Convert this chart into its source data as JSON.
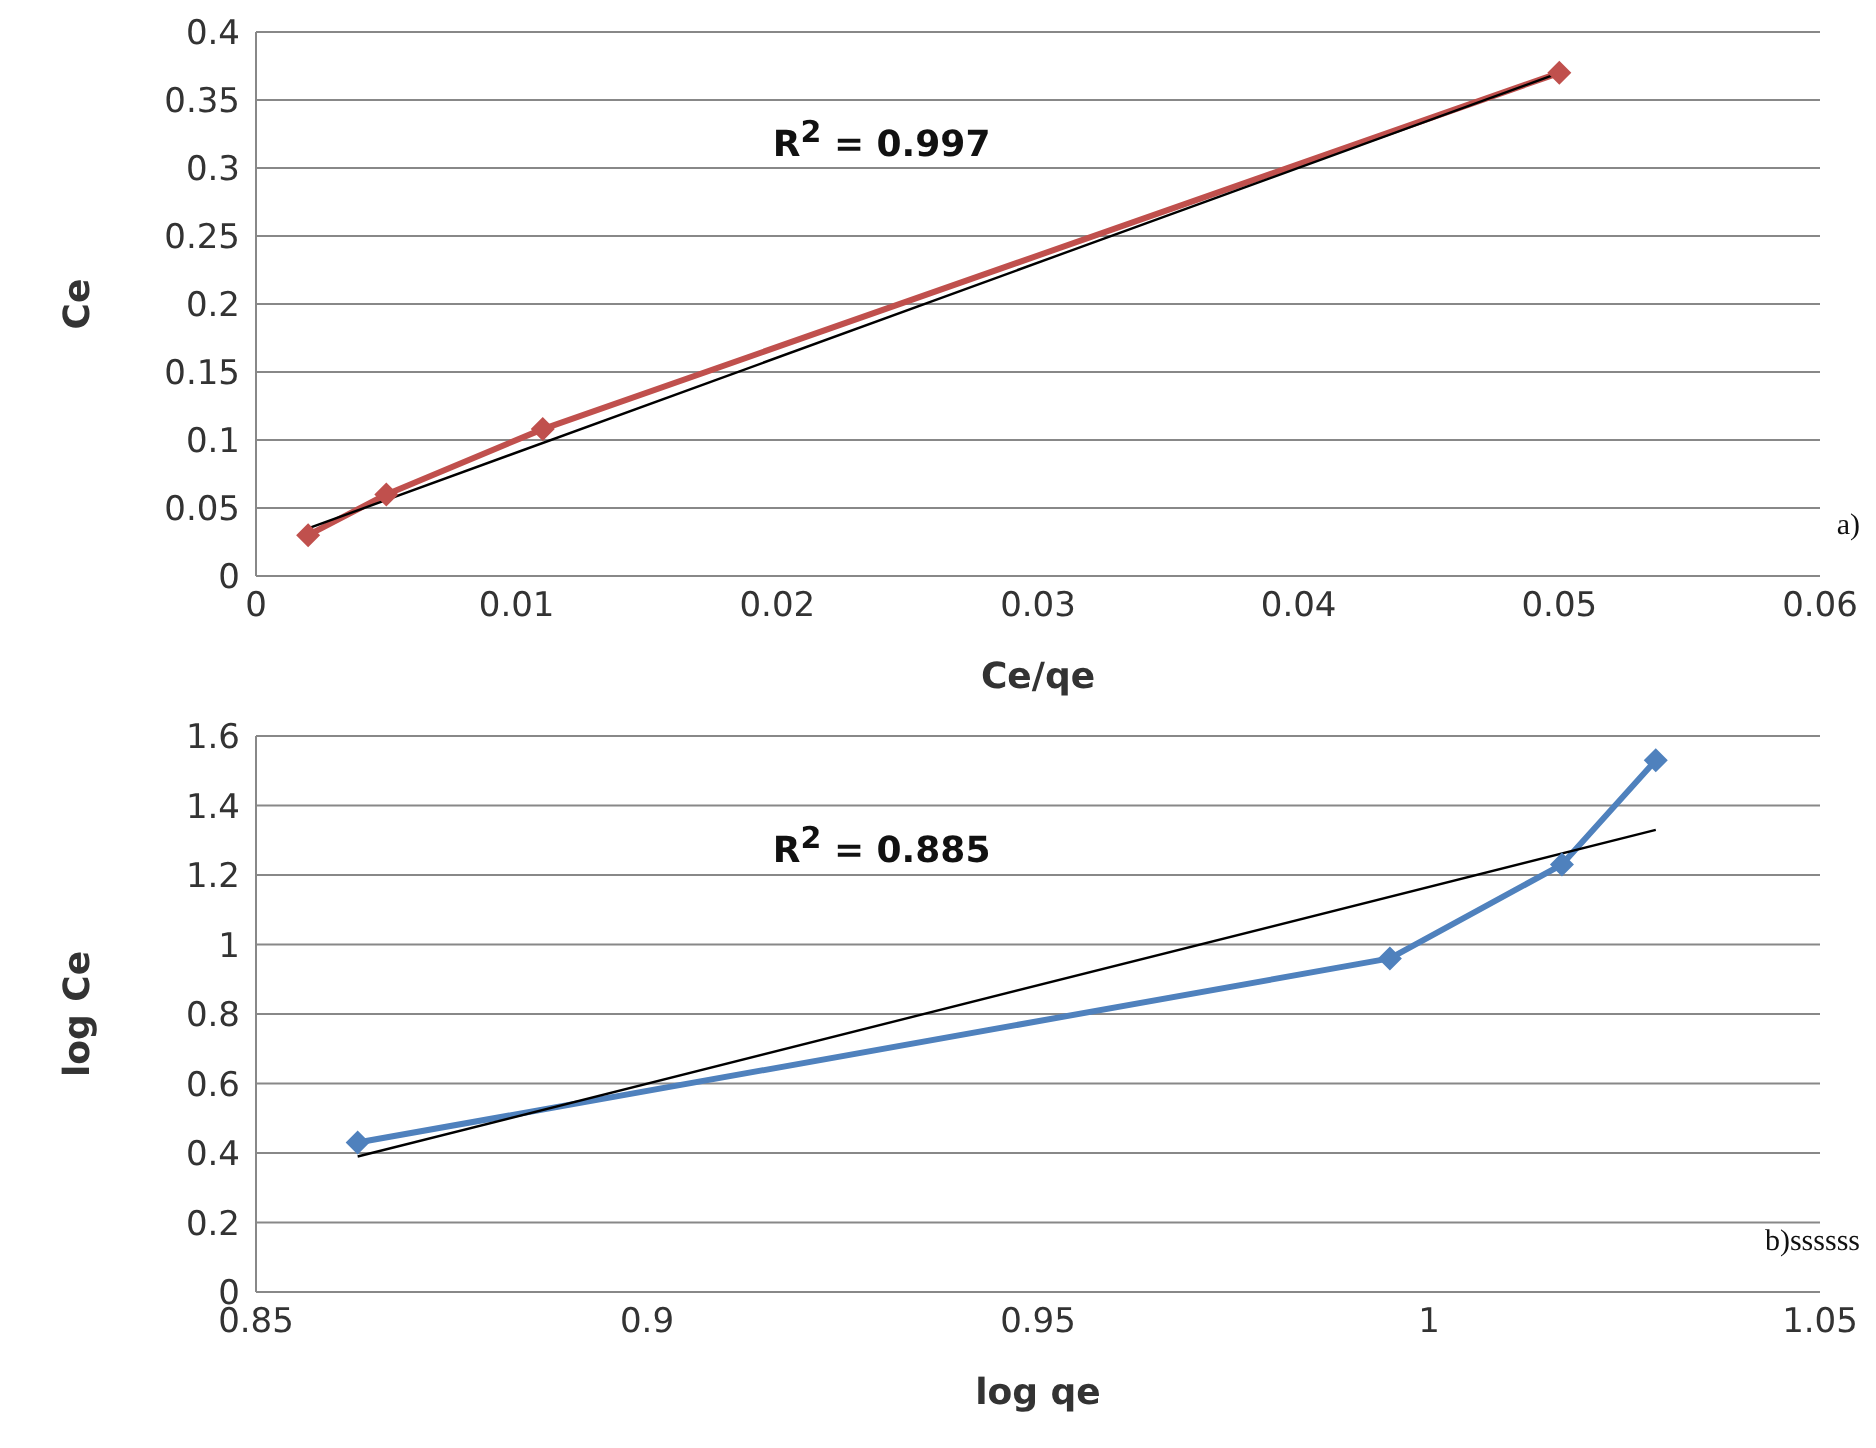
{
  "chart_data": [
    {
      "type": "line",
      "xlabel": "Ce/qe",
      "ylabel": "Ce",
      "xlim": [
        0,
        0.06
      ],
      "ylim": [
        0,
        0.4
      ],
      "xticks": [
        0,
        0.01,
        0.02,
        0.03,
        0.04,
        0.05,
        0.06
      ],
      "yticks": [
        0,
        0.05,
        0.1,
        0.15,
        0.2,
        0.25,
        0.3,
        0.35,
        0.4
      ],
      "grid": "y",
      "annotations": [
        "R$^{2}$ = 0.997",
        "a)"
      ],
      "series": [
        {
          "color": "#c0504d",
          "marker": "diamond",
          "x": [
            0.002,
            0.005,
            0.011,
            0.05
          ],
          "values": [
            0.03,
            0.06,
            0.108,
            0.37
          ]
        },
        {
          "type": "line",
          "color": "#000000",
          "marker": "none",
          "x": [
            0.002,
            0.05
          ],
          "values": [
            0.035,
            0.37
          ]
        }
      ]
    },
    {
      "type": "line",
      "xlabel": "log qe",
      "ylabel": "log Ce",
      "xlim": [
        0.85,
        1.05
      ],
      "ylim": [
        0,
        1.6
      ],
      "xticks": [
        0.85,
        0.9,
        0.95,
        1,
        1.05
      ],
      "yticks": [
        0,
        0.2,
        0.4,
        0.6,
        0.8,
        1,
        1.2,
        1.4,
        1.6
      ],
      "grid": "y",
      "annotations": [
        "R$^{2}$ = 0.885",
        "b)ssssss"
      ],
      "series": [
        {
          "color": "#4f81bd",
          "marker": "diamond",
          "x": [
            0.863,
            0.995,
            1.017,
            1.029
          ],
          "values": [
            0.43,
            0.96,
            1.23,
            1.53
          ]
        },
        {
          "type": "line",
          "color": "#000000",
          "marker": "none",
          "x": [
            0.863,
            1.029
          ],
          "values": [
            0.39,
            1.33
          ]
        }
      ]
    }
  ]
}
